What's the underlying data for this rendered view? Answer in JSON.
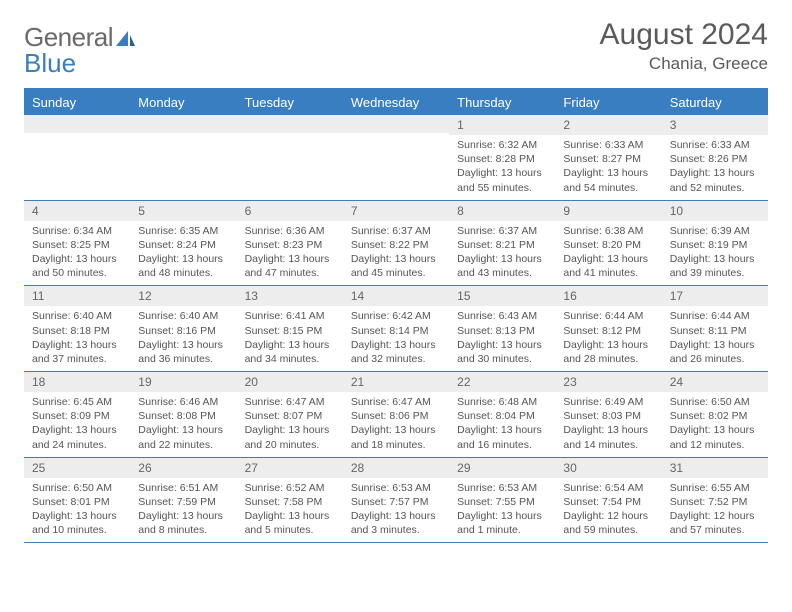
{
  "logo": {
    "text1": "General",
    "text2": "Blue"
  },
  "title": {
    "month_year": "August 2024",
    "location": "Chania, Greece"
  },
  "colors": {
    "accent": "#3a7ec2",
    "header_row_bg": "#3a7ec2",
    "daynum_bg": "#ededed",
    "text": "#555"
  },
  "day_names": [
    "Sunday",
    "Monday",
    "Tuesday",
    "Wednesday",
    "Thursday",
    "Friday",
    "Saturday"
  ],
  "weeks": [
    [
      {
        "day": "",
        "sunrise": "",
        "sunset": "",
        "daylight": ""
      },
      {
        "day": "",
        "sunrise": "",
        "sunset": "",
        "daylight": ""
      },
      {
        "day": "",
        "sunrise": "",
        "sunset": "",
        "daylight": ""
      },
      {
        "day": "",
        "sunrise": "",
        "sunset": "",
        "daylight": ""
      },
      {
        "day": "1",
        "sunrise": "Sunrise: 6:32 AM",
        "sunset": "Sunset: 8:28 PM",
        "daylight": "Daylight: 13 hours and 55 minutes."
      },
      {
        "day": "2",
        "sunrise": "Sunrise: 6:33 AM",
        "sunset": "Sunset: 8:27 PM",
        "daylight": "Daylight: 13 hours and 54 minutes."
      },
      {
        "day": "3",
        "sunrise": "Sunrise: 6:33 AM",
        "sunset": "Sunset: 8:26 PM",
        "daylight": "Daylight: 13 hours and 52 minutes."
      }
    ],
    [
      {
        "day": "4",
        "sunrise": "Sunrise: 6:34 AM",
        "sunset": "Sunset: 8:25 PM",
        "daylight": "Daylight: 13 hours and 50 minutes."
      },
      {
        "day": "5",
        "sunrise": "Sunrise: 6:35 AM",
        "sunset": "Sunset: 8:24 PM",
        "daylight": "Daylight: 13 hours and 48 minutes."
      },
      {
        "day": "6",
        "sunrise": "Sunrise: 6:36 AM",
        "sunset": "Sunset: 8:23 PM",
        "daylight": "Daylight: 13 hours and 47 minutes."
      },
      {
        "day": "7",
        "sunrise": "Sunrise: 6:37 AM",
        "sunset": "Sunset: 8:22 PM",
        "daylight": "Daylight: 13 hours and 45 minutes."
      },
      {
        "day": "8",
        "sunrise": "Sunrise: 6:37 AM",
        "sunset": "Sunset: 8:21 PM",
        "daylight": "Daylight: 13 hours and 43 minutes."
      },
      {
        "day": "9",
        "sunrise": "Sunrise: 6:38 AM",
        "sunset": "Sunset: 8:20 PM",
        "daylight": "Daylight: 13 hours and 41 minutes."
      },
      {
        "day": "10",
        "sunrise": "Sunrise: 6:39 AM",
        "sunset": "Sunset: 8:19 PM",
        "daylight": "Daylight: 13 hours and 39 minutes."
      }
    ],
    [
      {
        "day": "11",
        "sunrise": "Sunrise: 6:40 AM",
        "sunset": "Sunset: 8:18 PM",
        "daylight": "Daylight: 13 hours and 37 minutes."
      },
      {
        "day": "12",
        "sunrise": "Sunrise: 6:40 AM",
        "sunset": "Sunset: 8:16 PM",
        "daylight": "Daylight: 13 hours and 36 minutes."
      },
      {
        "day": "13",
        "sunrise": "Sunrise: 6:41 AM",
        "sunset": "Sunset: 8:15 PM",
        "daylight": "Daylight: 13 hours and 34 minutes."
      },
      {
        "day": "14",
        "sunrise": "Sunrise: 6:42 AM",
        "sunset": "Sunset: 8:14 PM",
        "daylight": "Daylight: 13 hours and 32 minutes."
      },
      {
        "day": "15",
        "sunrise": "Sunrise: 6:43 AM",
        "sunset": "Sunset: 8:13 PM",
        "daylight": "Daylight: 13 hours and 30 minutes."
      },
      {
        "day": "16",
        "sunrise": "Sunrise: 6:44 AM",
        "sunset": "Sunset: 8:12 PM",
        "daylight": "Daylight: 13 hours and 28 minutes."
      },
      {
        "day": "17",
        "sunrise": "Sunrise: 6:44 AM",
        "sunset": "Sunset: 8:11 PM",
        "daylight": "Daylight: 13 hours and 26 minutes."
      }
    ],
    [
      {
        "day": "18",
        "sunrise": "Sunrise: 6:45 AM",
        "sunset": "Sunset: 8:09 PM",
        "daylight": "Daylight: 13 hours and 24 minutes."
      },
      {
        "day": "19",
        "sunrise": "Sunrise: 6:46 AM",
        "sunset": "Sunset: 8:08 PM",
        "daylight": "Daylight: 13 hours and 22 minutes."
      },
      {
        "day": "20",
        "sunrise": "Sunrise: 6:47 AM",
        "sunset": "Sunset: 8:07 PM",
        "daylight": "Daylight: 13 hours and 20 minutes."
      },
      {
        "day": "21",
        "sunrise": "Sunrise: 6:47 AM",
        "sunset": "Sunset: 8:06 PM",
        "daylight": "Daylight: 13 hours and 18 minutes."
      },
      {
        "day": "22",
        "sunrise": "Sunrise: 6:48 AM",
        "sunset": "Sunset: 8:04 PM",
        "daylight": "Daylight: 13 hours and 16 minutes."
      },
      {
        "day": "23",
        "sunrise": "Sunrise: 6:49 AM",
        "sunset": "Sunset: 8:03 PM",
        "daylight": "Daylight: 13 hours and 14 minutes."
      },
      {
        "day": "24",
        "sunrise": "Sunrise: 6:50 AM",
        "sunset": "Sunset: 8:02 PM",
        "daylight": "Daylight: 13 hours and 12 minutes."
      }
    ],
    [
      {
        "day": "25",
        "sunrise": "Sunrise: 6:50 AM",
        "sunset": "Sunset: 8:01 PM",
        "daylight": "Daylight: 13 hours and 10 minutes."
      },
      {
        "day": "26",
        "sunrise": "Sunrise: 6:51 AM",
        "sunset": "Sunset: 7:59 PM",
        "daylight": "Daylight: 13 hours and 8 minutes."
      },
      {
        "day": "27",
        "sunrise": "Sunrise: 6:52 AM",
        "sunset": "Sunset: 7:58 PM",
        "daylight": "Daylight: 13 hours and 5 minutes."
      },
      {
        "day": "28",
        "sunrise": "Sunrise: 6:53 AM",
        "sunset": "Sunset: 7:57 PM",
        "daylight": "Daylight: 13 hours and 3 minutes."
      },
      {
        "day": "29",
        "sunrise": "Sunrise: 6:53 AM",
        "sunset": "Sunset: 7:55 PM",
        "daylight": "Daylight: 13 hours and 1 minute."
      },
      {
        "day": "30",
        "sunrise": "Sunrise: 6:54 AM",
        "sunset": "Sunset: 7:54 PM",
        "daylight": "Daylight: 12 hours and 59 minutes."
      },
      {
        "day": "31",
        "sunrise": "Sunrise: 6:55 AM",
        "sunset": "Sunset: 7:52 PM",
        "daylight": "Daylight: 12 hours and 57 minutes."
      }
    ]
  ]
}
